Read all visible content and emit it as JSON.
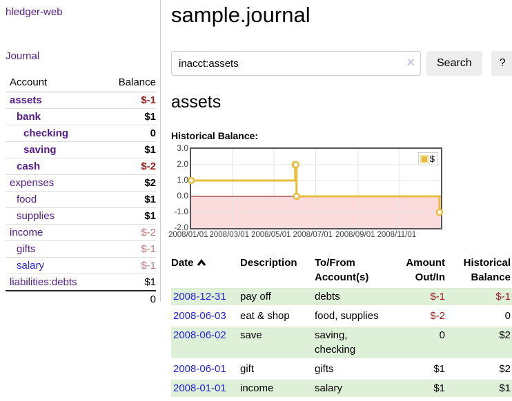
{
  "app": {
    "title": "hledger-web",
    "nav_journal": "Journal"
  },
  "sidebar": {
    "headers": {
      "account": "Account",
      "balance": "Balance"
    },
    "accounts": [
      {
        "name": "assets",
        "balance": "$-1"
      },
      {
        "name": "bank",
        "balance": "$1"
      },
      {
        "name": "checking",
        "balance": "0"
      },
      {
        "name": "saving",
        "balance": "$1"
      },
      {
        "name": "cash",
        "balance": "$-2"
      },
      {
        "name": "expenses",
        "balance": "$2"
      },
      {
        "name": "food",
        "balance": "$1"
      },
      {
        "name": "supplies",
        "balance": "$1"
      },
      {
        "name": "income",
        "balance": "$-2"
      },
      {
        "name": "gifts",
        "balance": "$-1"
      },
      {
        "name": "salary",
        "balance": "$-1"
      },
      {
        "name": "liabilities:debts",
        "balance": "$1"
      }
    ],
    "total": "0"
  },
  "main": {
    "title": "sample.journal",
    "search": {
      "value": "inacct:assets",
      "clear_icon": "×",
      "button_label": "Search",
      "help_label": "?"
    },
    "account_heading": "assets",
    "chart_label": "Historical Balance:",
    "transactions": {
      "headers": {
        "date": "Date",
        "description": "Description",
        "accounts": "To/From Account(s)",
        "amount": "Amount Out/In",
        "balance": "Historical Balance"
      },
      "rows": [
        {
          "date": "2008-12-31",
          "description": "pay off",
          "accounts": "debts",
          "amount": "$-1",
          "balance": "$-1"
        },
        {
          "date": "2008-06-03",
          "description": "eat & shop",
          "accounts": "food, supplies",
          "amount": "$-2",
          "balance": "0"
        },
        {
          "date": "2008-06-02",
          "description": "save",
          "accounts": "saving, checking",
          "amount": "0",
          "balance": "$2"
        },
        {
          "date": "2008-06-01",
          "description": "gift",
          "accounts": "gifts",
          "amount": "$1",
          "balance": "$2"
        },
        {
          "date": "2008-01-01",
          "description": "income",
          "accounts": "salary",
          "amount": "$1",
          "balance": "$1"
        }
      ]
    }
  },
  "chart_data": {
    "type": "line",
    "step": true,
    "title": "Historical Balance",
    "legend": "$",
    "legend_position": "top-right",
    "grid": true,
    "x_start": "2008-01-01",
    "x_end": "2008-12-31",
    "ylim": [
      -2,
      3
    ],
    "yticks": [
      3.0,
      2.0,
      1.0,
      0.0,
      -1.0,
      -2.0
    ],
    "ytick_labels": [
      "3.0",
      "2.0",
      "1.0",
      "0.0",
      "-1.0",
      "-2.0"
    ],
    "xticks": [
      "2008-01-01",
      "2008-03-01",
      "2008-05-01",
      "2008-07-01",
      "2008-09-01",
      "2008-11-01"
    ],
    "xtick_labels": [
      "2008/01/01",
      "2008/03/01",
      "2008/05/01",
      "2008/07/01",
      "2008/09/01",
      "2008/11/01"
    ],
    "series": [
      {
        "name": "$",
        "color": "#e8bd3d",
        "points": [
          {
            "x": "2008-01-01",
            "y": 1
          },
          {
            "x": "2008-06-01",
            "y": 2
          },
          {
            "x": "2008-06-02",
            "y": 2
          },
          {
            "x": "2008-06-03",
            "y": 0
          },
          {
            "x": "2008-12-31",
            "y": -1
          }
        ]
      }
    ]
  },
  "colors": {
    "link_purple": "#551a8b",
    "link_blue": "#2222dd",
    "negative_red": "#9b1c1c",
    "negative_faded": "#c47777",
    "row_green": "#dff0d8",
    "button_gray": "#ededed",
    "chart_line_gold": "#e8bd3d",
    "chart_negative_fill": "#fbdbdb",
    "chart_zero_line": "#8b0000",
    "chart_grid": "#e6e6e6",
    "chart_border": "#545454"
  }
}
